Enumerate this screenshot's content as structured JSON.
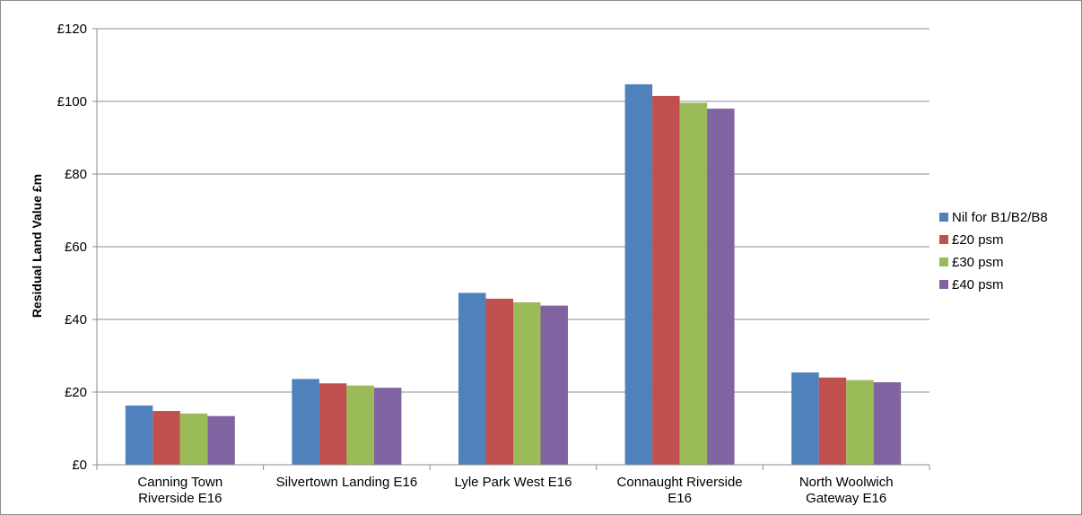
{
  "chart_data": {
    "type": "bar",
    "categories": [
      [
        "Canning Town",
        "Riverside E16"
      ],
      [
        "Silvertown Landing E16"
      ],
      [
        "Lyle Park West E16"
      ],
      [
        "Connaught Riverside",
        "E16"
      ],
      [
        "North Woolwich",
        "Gateway E16"
      ]
    ],
    "series": [
      {
        "name": "Nil for B1/B2/B8",
        "color": "#4f81bd",
        "values": [
          16.3,
          23.6,
          47.3,
          104.7,
          25.4
        ]
      },
      {
        "name": "£20 psm",
        "color": "#c0504d",
        "values": [
          14.8,
          22.4,
          45.7,
          101.5,
          24.0
        ]
      },
      {
        "name": "£30 psm",
        "color": "#9bbb59",
        "values": [
          14.1,
          21.8,
          44.7,
          99.6,
          23.3
        ]
      },
      {
        "name": "£40 psm",
        "color": "#8064a2",
        "values": [
          13.4,
          21.2,
          43.8,
          98.0,
          22.7
        ]
      }
    ],
    "ylabel": "Residual Land Value £m",
    "y_ticks": [
      "£0",
      "£20",
      "£40",
      "£60",
      "£80",
      "£100",
      "£120"
    ],
    "ylim": [
      0,
      120
    ],
    "grid": true,
    "legend": "right"
  }
}
